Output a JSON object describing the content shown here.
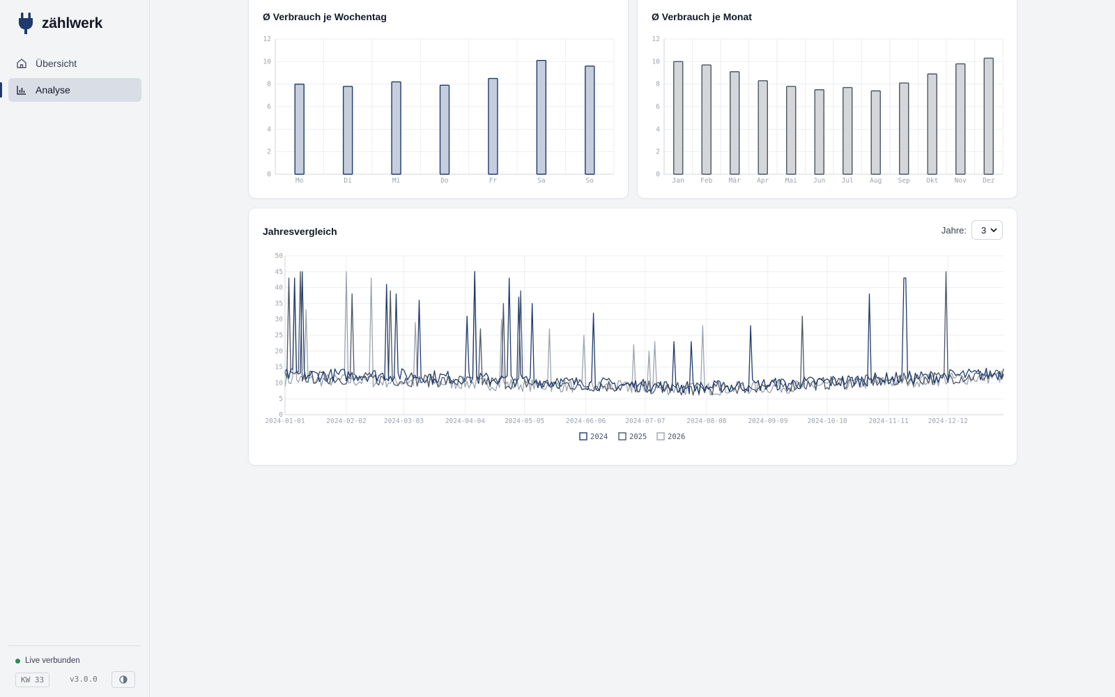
{
  "app": {
    "name": "zählwerk"
  },
  "sidebar": {
    "items": [
      {
        "label": "Übersicht",
        "icon": "home-icon",
        "active": false
      },
      {
        "label": "Analyse",
        "icon": "bar-chart-icon",
        "active": true
      }
    ],
    "footer": {
      "status": "Live verbunden",
      "status_color": "#2e8b57",
      "week_badge": "KW 33",
      "version": "v3.0.0",
      "theme_icon": "contrast-icon"
    }
  },
  "colors": {
    "accent": "#1e3a6e",
    "series_2024": "#1e3a6e",
    "series_2025": "#4b5563",
    "series_2026": "#9ca3af"
  },
  "cards": {
    "weekday": {
      "title": "Ø Verbrauch je Wochentag"
    },
    "month": {
      "title": "Ø Verbrauch je Monat"
    },
    "yearly": {
      "title": "Jahresvergleich",
      "years_label": "Jahre:",
      "years_value": "3"
    }
  },
  "chart_data": [
    {
      "type": "bar",
      "title": "Ø Verbrauch je Wochentag",
      "categories": [
        "Mo",
        "Di",
        "Mi",
        "Do",
        "Fr",
        "Sa",
        "So"
      ],
      "values": [
        8.0,
        7.8,
        8.2,
        7.9,
        8.5,
        10.1,
        9.6
      ],
      "ylim": [
        0,
        12
      ],
      "yticks": [
        0,
        2,
        4,
        6,
        8,
        10,
        12
      ],
      "grid": true
    },
    {
      "type": "bar",
      "title": "Ø Verbrauch je Monat",
      "categories": [
        "Jan",
        "Feb",
        "Mär",
        "Apr",
        "Mai",
        "Jun",
        "Jul",
        "Aug",
        "Sep",
        "Okt",
        "Nov",
        "Dez"
      ],
      "values": [
        10.0,
        9.7,
        9.1,
        8.3,
        7.8,
        7.5,
        7.7,
        7.4,
        8.1,
        8.9,
        9.8,
        10.3
      ],
      "ylim": [
        0,
        12
      ],
      "yticks": [
        0,
        2,
        4,
        6,
        8,
        10,
        12
      ],
      "grid": true
    },
    {
      "type": "line",
      "title": "Jahresvergleich",
      "xticks": [
        "2024-01-01",
        "2024-02-02",
        "2024-03-03",
        "2024-04-04",
        "2024-05-05",
        "2024-06-06",
        "2024-07-07",
        "2024-08-08",
        "2024-09-09",
        "2024-10-10",
        "2024-11-11",
        "2024-12-12"
      ],
      "xtick_days": [
        0,
        32,
        62,
        94,
        125,
        157,
        188,
        220,
        252,
        283,
        315,
        346
      ],
      "x_days_range": [
        0,
        375
      ],
      "ylim": [
        0,
        50
      ],
      "yticks": [
        0,
        5,
        10,
        15,
        20,
        25,
        30,
        35,
        40,
        45,
        50
      ],
      "grid": true,
      "legend_position": "bottom",
      "series": [
        {
          "name": "2024",
          "baseline": [
            [
              0,
              12.5
            ],
            [
              60,
              12.5
            ],
            [
              150,
              10
            ],
            [
              215,
              8.5
            ],
            [
              270,
              10
            ],
            [
              320,
              11.5
            ],
            [
              375,
              13
            ]
          ],
          "spikes": [
            [
              5,
              43
            ],
            [
              9,
              45
            ],
            [
              53,
              41
            ],
            [
              58,
              38
            ],
            [
              70,
              36
            ],
            [
              95,
              31
            ],
            [
              99,
              45
            ],
            [
              117,
              43
            ],
            [
              122,
              37
            ],
            [
              129,
              35
            ],
            [
              161,
              32
            ],
            [
              203,
              23
            ],
            [
              212,
              23
            ],
            [
              243,
              28
            ],
            [
              305,
              38
            ],
            [
              323,
              43
            ],
            [
              324,
              43
            ]
          ]
        },
        {
          "name": "2025",
          "baseline": [
            [
              0,
              12
            ],
            [
              60,
              11
            ],
            [
              150,
              9.5
            ],
            [
              215,
              8
            ],
            [
              270,
              9.5
            ],
            [
              320,
              11
            ],
            [
              375,
              12.5
            ]
          ],
          "spikes": [
            [
              2,
              43
            ],
            [
              8,
              45
            ],
            [
              35,
              38
            ],
            [
              55,
              39
            ],
            [
              99,
              45
            ],
            [
              102,
              27
            ],
            [
              114,
              35
            ],
            [
              123,
              39
            ],
            [
              270,
              31
            ],
            [
              345,
              45
            ]
          ]
        },
        {
          "name": "2026",
          "baseline": [
            [
              0,
              11
            ],
            [
              60,
              10.5
            ],
            [
              150,
              9
            ],
            [
              215,
              8
            ],
            [
              270,
              9
            ],
            [
              320,
              10.5
            ],
            [
              375,
              12
            ]
          ],
          "spikes": [
            [
              5,
              40
            ],
            [
              11,
              33
            ],
            [
              32,
              45
            ],
            [
              45,
              43
            ],
            [
              68,
              29
            ],
            [
              113,
              30
            ],
            [
              138,
              27
            ],
            [
              156,
              25
            ],
            [
              182,
              22
            ],
            [
              190,
              20
            ],
            [
              193,
              23
            ],
            [
              218,
              28
            ]
          ]
        }
      ]
    }
  ]
}
